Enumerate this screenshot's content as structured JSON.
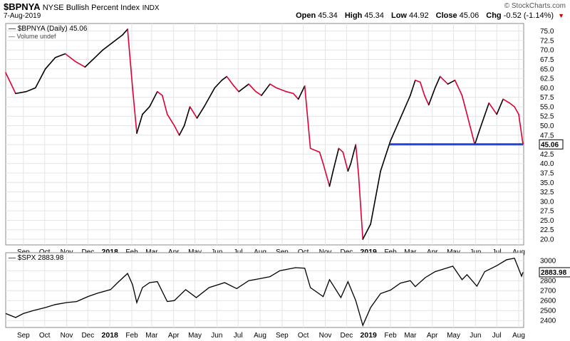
{
  "header": {
    "symbol": "$BPNYA",
    "name": "NYSE Bullish Percent Index",
    "exchange": "INDX",
    "date": "7-Aug-2019",
    "brand": "© StockCharts.com",
    "open_label": "Open",
    "open": "45.34",
    "high_label": "High",
    "high": "45.34",
    "low_label": "Low",
    "low": "44.92",
    "close_label": "Close",
    "close": "45.06",
    "chg_label": "Chg",
    "chg": "-0.52 (-1.14%)",
    "chg_arrow": "▼"
  },
  "colors": {
    "up": "#000000",
    "down": "#dd0033",
    "support_line": "#2244dd",
    "grid": "#e4e4e4"
  },
  "chart_data": [
    {
      "type": "line",
      "legend": "$BPNYA (Daily) 45.06",
      "volume_note": "Volume undef",
      "last_value_label": "45.06",
      "ylim": [
        18.5,
        77
      ],
      "yticks": [
        20.0,
        22.5,
        25.0,
        27.5,
        30.0,
        32.5,
        35.0,
        37.5,
        40.0,
        42.5,
        45.0,
        47.5,
        50.0,
        52.5,
        55.0,
        57.5,
        60.0,
        62.5,
        65.0,
        67.5,
        70.0,
        72.5,
        75.0
      ],
      "series": [
        {
          "x": [
            "2017-08-07",
            "2017-08-21",
            "2017-09-05",
            "2017-09-18",
            "2017-10-02",
            "2017-10-16",
            "2017-10-30",
            "2017-11-13",
            "2017-11-27",
            "2017-12-11",
            "2017-12-22",
            "2018-01-05",
            "2018-01-19",
            "2018-01-26",
            "2018-02-02",
            "2018-02-08",
            "2018-02-16",
            "2018-02-26",
            "2018-03-09",
            "2018-03-16",
            "2018-03-23",
            "2018-04-02",
            "2018-04-09",
            "2018-04-16",
            "2018-04-24",
            "2018-05-04",
            "2018-05-14",
            "2018-05-29",
            "2018-06-08",
            "2018-06-15",
            "2018-06-25",
            "2018-07-02",
            "2018-07-16",
            "2018-07-26",
            "2018-08-03",
            "2018-08-15",
            "2018-08-24",
            "2018-09-07",
            "2018-09-17",
            "2018-09-24",
            "2018-10-03",
            "2018-10-11",
            "2018-10-24",
            "2018-10-29",
            "2018-11-07",
            "2018-11-12",
            "2018-11-20",
            "2018-11-26",
            "2018-12-03",
            "2018-12-07",
            "2018-12-14",
            "2018-12-18",
            "2018-12-24",
            "2019-01-04",
            "2019-01-18",
            "2019-02-01",
            "2019-02-15",
            "2019-03-01",
            "2019-03-08",
            "2019-03-15",
            "2019-03-21",
            "2019-03-27",
            "2019-04-05",
            "2019-04-12",
            "2019-04-23",
            "2019-05-03",
            "2019-05-13",
            "2019-05-20",
            "2019-05-31",
            "2019-06-07",
            "2019-06-20",
            "2019-07-01",
            "2019-07-10",
            "2019-07-19",
            "2019-07-26",
            "2019-08-01",
            "2019-08-07"
          ],
          "y": [
            64,
            58.5,
            59,
            60,
            65,
            68,
            69,
            67,
            65.5,
            68,
            70,
            72,
            74,
            75.5,
            60,
            48,
            53,
            55,
            59,
            58,
            53,
            50,
            47.5,
            50,
            55,
            52,
            55,
            60,
            62,
            63,
            60.5,
            59,
            61,
            59,
            58,
            61,
            60,
            59,
            58.5,
            57,
            60.5,
            44,
            43,
            40,
            34,
            38,
            44,
            43,
            38,
            40,
            45,
            37,
            20,
            24,
            38,
            46,
            52,
            58,
            62,
            61.5,
            58,
            55.5,
            60,
            63,
            61,
            62,
            58,
            53,
            45,
            49,
            56,
            53,
            57,
            56,
            55,
            53,
            45.06
          ]
        }
      ],
      "support_level": 45.06,
      "support_from": "2019-01-31",
      "support_to": "2019-08-07"
    },
    {
      "type": "line",
      "legend": "$SPX 2883.98",
      "last_value_label": "2883.98",
      "ylim": [
        2330,
        3080
      ],
      "yticks": [
        2400,
        2500,
        2600,
        2700,
        2800,
        2900,
        3000
      ],
      "series": [
        {
          "x": [
            "2017-08-07",
            "2017-08-21",
            "2017-09-01",
            "2017-09-15",
            "2017-10-02",
            "2017-10-16",
            "2017-11-01",
            "2017-11-15",
            "2017-12-01",
            "2017-12-15",
            "2018-01-02",
            "2018-01-12",
            "2018-01-26",
            "2018-02-02",
            "2018-02-08",
            "2018-02-16",
            "2018-02-26",
            "2018-03-09",
            "2018-03-23",
            "2018-04-02",
            "2018-04-18",
            "2018-05-03",
            "2018-05-21",
            "2018-06-12",
            "2018-06-29",
            "2018-07-16",
            "2018-08-01",
            "2018-08-15",
            "2018-08-29",
            "2018-09-20",
            "2018-10-03",
            "2018-10-11",
            "2018-10-29",
            "2018-11-07",
            "2018-11-23",
            "2018-12-03",
            "2018-12-14",
            "2018-12-24",
            "2019-01-04",
            "2019-01-18",
            "2019-02-01",
            "2019-02-15",
            "2019-03-01",
            "2019-03-08",
            "2019-03-22",
            "2019-04-05",
            "2019-04-30",
            "2019-05-13",
            "2019-05-20",
            "2019-06-03",
            "2019-06-14",
            "2019-07-01",
            "2019-07-15",
            "2019-07-26",
            "2019-08-05",
            "2019-08-07"
          ],
          "y": [
            2470,
            2430,
            2470,
            2500,
            2530,
            2560,
            2580,
            2590,
            2640,
            2675,
            2710,
            2780,
            2872,
            2760,
            2580,
            2730,
            2780,
            2790,
            2590,
            2600,
            2710,
            2630,
            2730,
            2780,
            2720,
            2800,
            2820,
            2840,
            2900,
            2930,
            2925,
            2730,
            2640,
            2810,
            2630,
            2790,
            2600,
            2351,
            2530,
            2670,
            2705,
            2775,
            2800,
            2740,
            2830,
            2890,
            2945,
            2810,
            2860,
            2744,
            2890,
            2950,
            3010,
            3025,
            2845,
            2883.98
          ]
        }
      ]
    }
  ],
  "x_axis": {
    "ticks": [
      {
        "label": "Sep",
        "date": "2017-09-01",
        "major": false
      },
      {
        "label": "Oct",
        "date": "2017-10-01",
        "major": false
      },
      {
        "label": "Nov",
        "date": "2017-11-01",
        "major": false
      },
      {
        "label": "Dec",
        "date": "2017-12-01",
        "major": false
      },
      {
        "label": "2018",
        "date": "2018-01-01",
        "major": true
      },
      {
        "label": "Feb",
        "date": "2018-02-01",
        "major": false
      },
      {
        "label": "Mar",
        "date": "2018-03-01",
        "major": false
      },
      {
        "label": "Apr",
        "date": "2018-04-01",
        "major": false
      },
      {
        "label": "May",
        "date": "2018-05-01",
        "major": false
      },
      {
        "label": "Jun",
        "date": "2018-06-01",
        "major": false
      },
      {
        "label": "Jul",
        "date": "2018-07-01",
        "major": false
      },
      {
        "label": "Aug",
        "date": "2018-08-01",
        "major": false
      },
      {
        "label": "Sep",
        "date": "2018-09-01",
        "major": false
      },
      {
        "label": "Oct",
        "date": "2018-10-01",
        "major": false
      },
      {
        "label": "Nov",
        "date": "2018-11-01",
        "major": false
      },
      {
        "label": "Dec",
        "date": "2018-12-01",
        "major": false
      },
      {
        "label": "2019",
        "date": "2019-01-01",
        "major": true
      },
      {
        "label": "Feb",
        "date": "2019-02-01",
        "major": false
      },
      {
        "label": "Mar",
        "date": "2019-03-01",
        "major": false
      },
      {
        "label": "Apr",
        "date": "2019-04-01",
        "major": false
      },
      {
        "label": "May",
        "date": "2019-05-01",
        "major": false
      },
      {
        "label": "Jun",
        "date": "2019-06-01",
        "major": false
      },
      {
        "label": "Jul",
        "date": "2019-07-01",
        "major": false
      },
      {
        "label": "Aug",
        "date": "2019-08-01",
        "major": false
      }
    ]
  }
}
